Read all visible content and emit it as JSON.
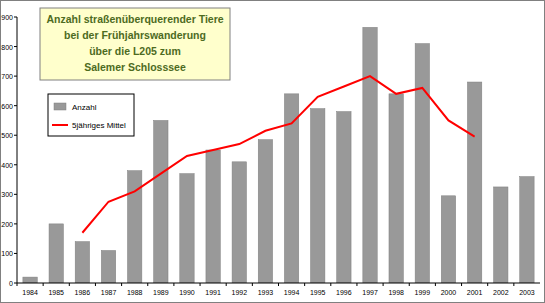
{
  "chart_data": {
    "type": "bar",
    "title": "Anzahl straßenüberquerender Tiere\nbei der Frühjahrswanderung\nüber die L205 zum\nSalemer Schlosssee",
    "categories": [
      "1984",
      "1985",
      "1986",
      "1987",
      "1988",
      "1989",
      "1990",
      "1991",
      "1992",
      "1993",
      "1994",
      "1995",
      "1996",
      "1997",
      "1998",
      "1999",
      "2000",
      "2001",
      "2002",
      "2003"
    ],
    "series": [
      {
        "name": "Anzahl",
        "type": "bar",
        "color": "#999999",
        "values": [
          20,
          200,
          140,
          110,
          380,
          550,
          370,
          450,
          410,
          485,
          640,
          590,
          580,
          865,
          640,
          810,
          295,
          680,
          325,
          360
        ]
      },
      {
        "name": "5jähriges Mittel",
        "type": "line",
        "color": "#ff0000",
        "values": [
          null,
          null,
          170,
          275,
          310,
          370,
          430,
          450,
          470,
          515,
          540,
          630,
          665,
          700,
          640,
          660,
          550,
          495,
          null,
          null
        ]
      }
    ],
    "ylim": [
      0,
      900
    ],
    "yticks": [
      0,
      100,
      200,
      300,
      400,
      500,
      600,
      700,
      800,
      900
    ],
    "grid": false,
    "legend": "upper left"
  }
}
